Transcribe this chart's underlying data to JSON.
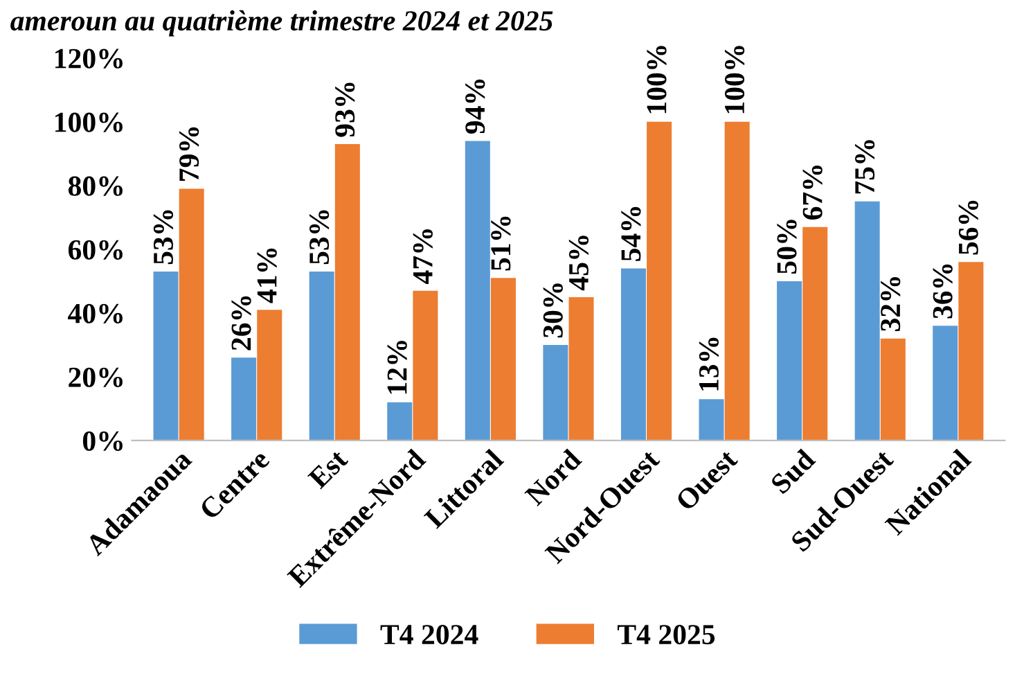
{
  "chart_data": {
    "type": "bar",
    "title": "ameroun au quatrième trimestre 2024 et 2025",
    "categories": [
      "Adamaoua",
      "Centre",
      "Est",
      "Extrême-Nord",
      "Littoral",
      "Nord",
      "Nord-Ouest",
      "Ouest",
      "Sud",
      "Sud-Ouest",
      "National"
    ],
    "series": [
      {
        "name": "T4 2024",
        "color": "#5b9bd5",
        "values": [
          53,
          26,
          53,
          12,
          94,
          30,
          54,
          13,
          50,
          75,
          36
        ]
      },
      {
        "name": "T4 2025",
        "color": "#ed7d31",
        "values": [
          79,
          41,
          93,
          47,
          51,
          45,
          100,
          100,
          67,
          32,
          56
        ]
      }
    ],
    "value_labels": [
      [
        "53%",
        "26%",
        "53%",
        "12%",
        "94%",
        "30%",
        "54%",
        "13%",
        "50%",
        "75%",
        "36%"
      ],
      [
        "79%",
        "41%",
        "93%",
        "47%",
        "51%",
        "45%",
        "100%",
        "100%",
        "67%",
        "32%",
        "56%"
      ]
    ],
    "ylim": [
      0,
      120
    ],
    "yticks": [
      {
        "value": 0,
        "label": "0%"
      },
      {
        "value": 20,
        "label": "20%"
      },
      {
        "value": 40,
        "label": "40%"
      },
      {
        "value": 60,
        "label": "60%"
      },
      {
        "value": 80,
        "label": "80%"
      },
      {
        "value": 100,
        "label": "100%"
      },
      {
        "value": 120,
        "label": "120%"
      }
    ],
    "grid": false,
    "legend": "bottom"
  }
}
